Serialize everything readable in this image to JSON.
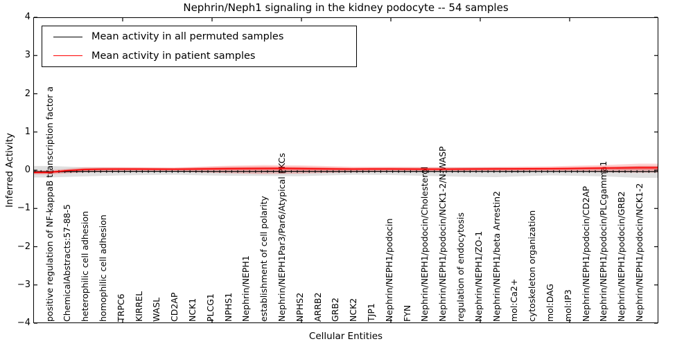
{
  "figure": {
    "title": "Nephrin/Neph1 signaling in the kidney podocyte -- 54 samples"
  },
  "legend": {
    "position": "upper left",
    "entries": [
      {
        "label": "Mean activity in all permuted samples",
        "color": "#000000"
      },
      {
        "label": "Mean activity in patient samples",
        "color": "#ff0000"
      }
    ]
  },
  "colors": {
    "permuted_line": "#000000",
    "patient_line": "#ff0000",
    "permuted_band": "rgba(0,0,0,0.12)",
    "patient_band_outer": "rgba(255,0,0,0.18)",
    "patient_band_inner": "rgba(255,0,0,0.30)",
    "background": "#ffffff"
  },
  "chart_data": {
    "type": "line",
    "title": "Nephrin/Neph1 signaling in the kidney podocyte -- 54 samples",
    "xlabel": "Cellular Entities",
    "ylabel": "Inferred Activity",
    "ylim": [
      -4,
      4
    ],
    "yticks": [
      4,
      3,
      2,
      1,
      0,
      -1,
      -2,
      -3,
      -4
    ],
    "ytick_labels": [
      "4",
      "3",
      "2",
      "1",
      "0",
      "−1",
      "−2",
      "−3",
      "−4"
    ],
    "grid": false,
    "legend_position": "upper left",
    "categories": [
      "positive regulation of NF-kappaB transcription factor a",
      "ChemicalAbstracts:57-88-5",
      "heterophilic cell adhesion",
      "homophilic cell adhesion",
      "TRPC6",
      "KIRREL",
      "WASL",
      "CD2AP",
      "NCK1",
      "PLCG1",
      "NPHS1",
      "Nephrin/NEPH1",
      "establishment of cell polarity",
      "Nephrin/NEPH1Par3/Par6/Atypical PKCs",
      "NPHS2",
      "ARRB2",
      "GRB2",
      "NCK2",
      "TJP1",
      "Nephrin/NEPH1/podocin",
      "FYN",
      "Nephrin/NEPH1/podocin/Cholesterol",
      "Nephrin/NEPH1/podocin/NCK1-2/N-WASP",
      "regulation of endocytosis",
      "Nephrin/NEPH1/ZO-1",
      "Nephrin/NEPH1/beta Arrestin2",
      "mol:Ca2+",
      "cytoskeleton organization",
      "mol:DAG",
      "mol:IP3",
      "Nephrin/NEPH1/podocin/CD2AP",
      "Nephrin/NEPH1/podocin/PLCgamma1",
      "Nephrin/NEPH1/podocin/GRB2",
      "Nephrin/NEPH1/podocin/NCK1-2"
    ],
    "series": [
      {
        "name": "Mean activity in all permuted samples",
        "color": "#000000",
        "marker": "tick",
        "values": [
          -0.04,
          -0.035,
          -0.032,
          -0.03,
          -0.03,
          -0.03,
          -0.03,
          -0.03,
          -0.03,
          -0.031,
          -0.032,
          -0.032,
          -0.031,
          -0.03,
          -0.03,
          -0.031,
          -0.032,
          -0.031,
          -0.03,
          -0.03,
          -0.031,
          -0.032,
          -0.032,
          -0.031,
          -0.031,
          -0.032,
          -0.033,
          -0.032,
          -0.031,
          -0.031,
          -0.032,
          -0.032,
          -0.033,
          -0.034
        ]
      },
      {
        "name": "Mean activity in patient samples",
        "color": "#ff0000",
        "marker": "none",
        "values": [
          -0.055,
          -0.01,
          0.02,
          0.028,
          0.03,
          0.03,
          0.028,
          0.027,
          0.03,
          0.035,
          0.04,
          0.042,
          0.045,
          0.046,
          0.042,
          0.038,
          0.032,
          0.03,
          0.032,
          0.033,
          0.03,
          0.028,
          0.027,
          0.03,
          0.032,
          0.035,
          0.038,
          0.04,
          0.042,
          0.045,
          0.05,
          0.055,
          0.06,
          0.065
        ]
      }
    ],
    "bands": [
      {
        "name": "permuted-sample-spread",
        "upper": [
          0.11,
          0.095,
          0.08,
          0.072,
          0.065,
          0.062,
          0.058,
          0.055,
          0.063,
          0.072,
          0.08,
          0.08,
          0.08,
          0.08,
          0.08,
          0.072,
          0.063,
          0.055,
          0.059,
          0.063,
          0.065,
          0.067,
          0.07,
          0.072,
          0.072,
          0.072,
          0.066,
          0.06,
          0.055,
          0.063,
          0.072,
          0.08,
          0.095,
          0.11
        ],
        "lower": [
          -0.19,
          -0.175,
          -0.16,
          -0.147,
          -0.135,
          -0.13,
          -0.125,
          -0.12,
          -0.128,
          -0.137,
          -0.145,
          -0.148,
          -0.15,
          -0.153,
          -0.155,
          -0.143,
          -0.131,
          -0.12,
          -0.122,
          -0.125,
          -0.136,
          -0.147,
          -0.159,
          -0.17,
          -0.175,
          -0.18,
          -0.165,
          -0.15,
          -0.135,
          -0.143,
          -0.151,
          -0.16,
          -0.18,
          -0.2
        ]
      },
      {
        "name": "patient-sample-spread-outer",
        "upper": [
          0.0,
          0.04,
          0.08,
          0.081,
          0.082,
          0.079,
          0.075,
          0.072,
          0.087,
          0.103,
          0.118,
          0.127,
          0.136,
          0.132,
          0.127,
          0.115,
          0.102,
          0.09,
          0.09,
          0.09,
          0.088,
          0.085,
          0.083,
          0.081,
          0.086,
          0.09,
          0.093,
          0.097,
          0.1,
          0.112,
          0.124,
          0.136,
          0.154,
          0.172
        ],
        "lower": [
          -0.11,
          -0.083,
          -0.055,
          -0.05,
          -0.045,
          -0.042,
          -0.039,
          -0.036,
          -0.051,
          -0.065,
          -0.08,
          -0.09,
          -0.1,
          -0.095,
          -0.09,
          -0.078,
          -0.066,
          -0.054,
          -0.05,
          -0.045,
          -0.045,
          -0.045,
          -0.045,
          -0.045,
          -0.04,
          -0.036,
          -0.033,
          -0.03,
          -0.027,
          -0.036,
          -0.045,
          -0.054,
          -0.058,
          -0.063
        ]
      },
      {
        "name": "patient-sample-spread-inner",
        "upper": [
          -0.025,
          0.015,
          0.05,
          0.058,
          0.06,
          0.06,
          0.058,
          0.057,
          0.065,
          0.075,
          0.085,
          0.09,
          0.095,
          0.09,
          0.085,
          0.078,
          0.068,
          0.062,
          0.063,
          0.064,
          0.061,
          0.059,
          0.058,
          0.06,
          0.062,
          0.066,
          0.069,
          0.072,
          0.075,
          0.08,
          0.088,
          0.095,
          0.1,
          0.11
        ],
        "lower": [
          -0.09,
          -0.045,
          -0.012,
          -0.005,
          -0.002,
          -0.002,
          -0.004,
          -0.005,
          -0.005,
          -0.003,
          -0.002,
          -0.003,
          -0.005,
          -0.004,
          -0.006,
          -0.008,
          -0.01,
          -0.008,
          -0.006,
          -0.005,
          -0.007,
          -0.009,
          -0.01,
          -0.008,
          -0.006,
          -0.004,
          -0.002,
          0.0,
          0.0,
          0.002,
          0.005,
          0.008,
          0.01,
          0.012
        ]
      }
    ]
  }
}
